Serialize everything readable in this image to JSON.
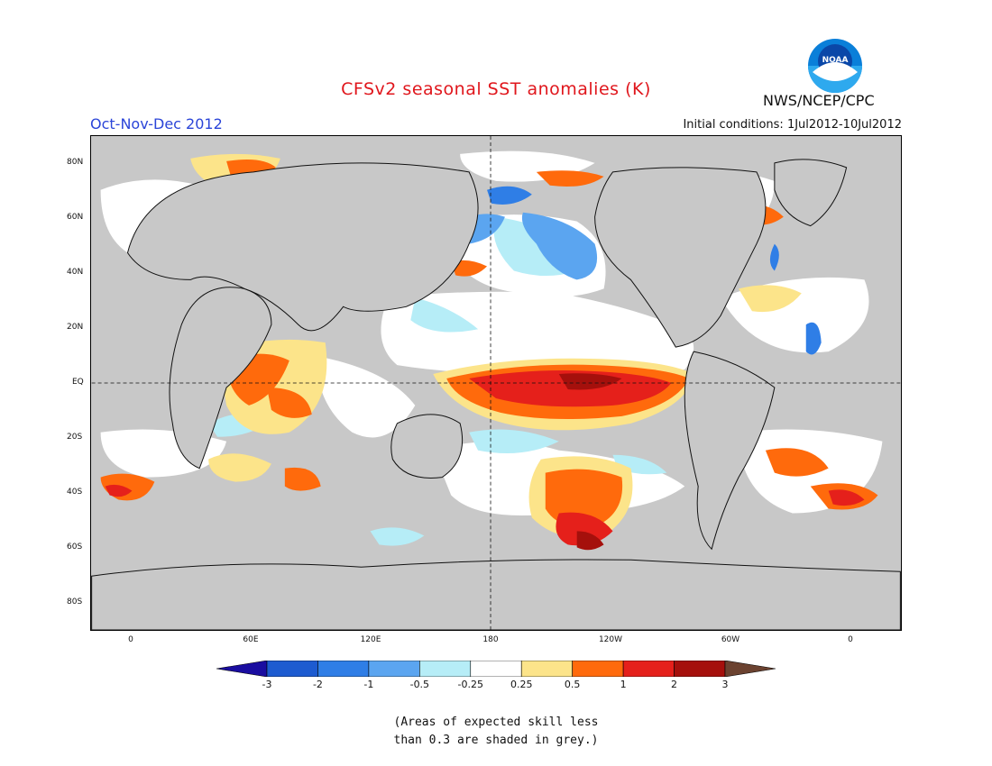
{
  "header": {
    "title": "CFSv2 seasonal SST anomalies (K)",
    "season": "Oct-Nov-Dec 2012",
    "initial_conditions": "Initial conditions: 1Jul2012-10Jul2012",
    "organization": "NWS/NCEP/CPC",
    "logo_text": "NOAA"
  },
  "map": {
    "lat_labels": [
      "80N",
      "60N",
      "40N",
      "20N",
      "EQ",
      "20S",
      "40S",
      "60S",
      "80S"
    ],
    "lon_labels": [
      "0",
      "60E",
      "120E",
      "180",
      "120W",
      "60W",
      "0"
    ]
  },
  "legend": {
    "labels": [
      "-3",
      "-2",
      "-1",
      "-0.5",
      "-0.25",
      "0.25",
      "0.5",
      "1",
      "2",
      "3"
    ],
    "colors": [
      "#1a0da0",
      "#1d5bd0",
      "#2f7ee6",
      "#5ba5f0",
      "#b6edf7",
      "#ffffff",
      "#fce48a",
      "#ff6a0c",
      "#e5201b",
      "#a5100c",
      "#6b4230"
    ]
  },
  "footnote": {
    "line1": "(Areas of expected skill less",
    "line2": "than 0.3 are shaded in grey.)"
  }
}
